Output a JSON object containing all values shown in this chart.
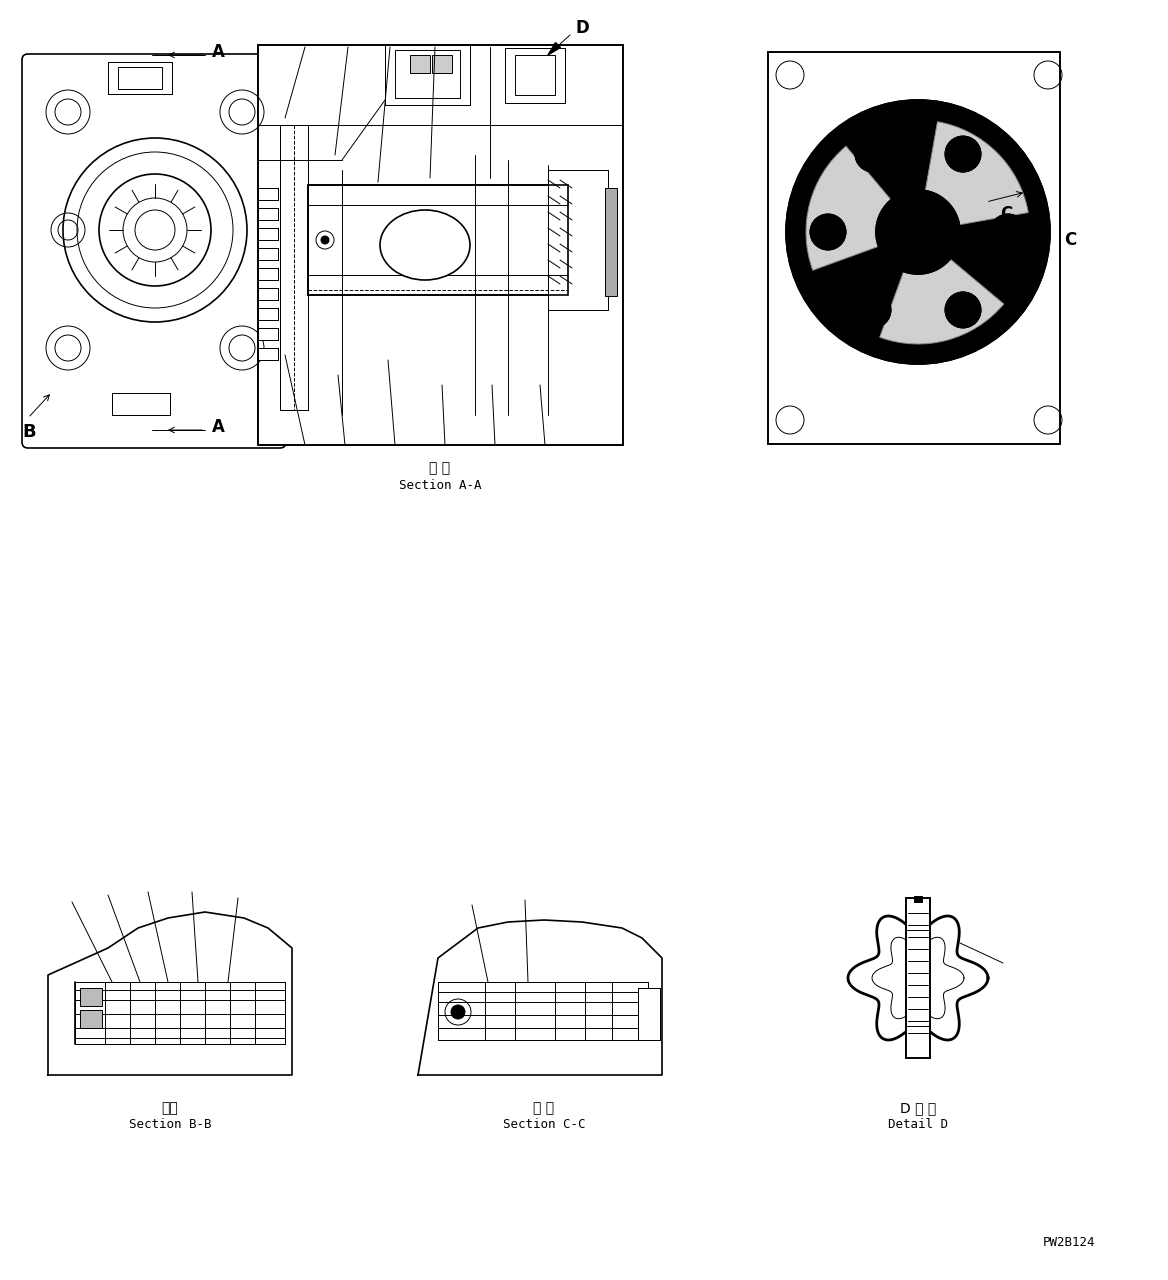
{
  "figure_width": 11.68,
  "figure_height": 12.8,
  "bg_color": "#ffffff",
  "line_color": "#000000",
  "section_aa_label_jp": "断 面",
  "section_aa_label_en": "Section A-A",
  "section_bb_label_jp": "断面",
  "section_bb_label_en": "Section B-B",
  "section_cc_label_jp": "断 面",
  "section_cc_label_en": "Section C-C",
  "detail_d_label_jp": "D 詳 細",
  "detail_d_label_en": "Detail D",
  "watermark": "PW2B124",
  "label_A": "A",
  "label_B": "B",
  "label_C": "C",
  "label_D": "D"
}
